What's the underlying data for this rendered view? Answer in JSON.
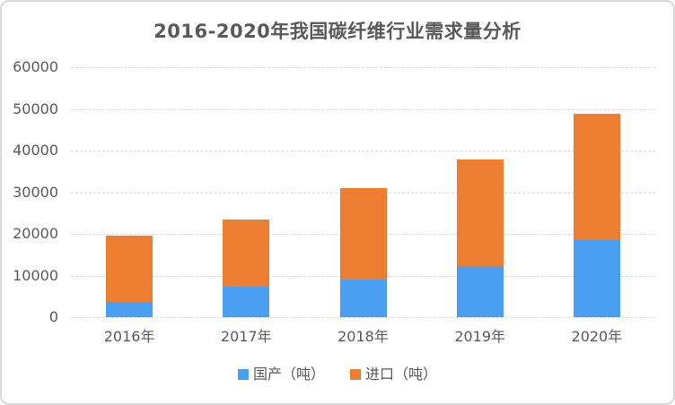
{
  "page": {
    "background_color": "#ffffff",
    "border_color": "#d9d9d9",
    "text_color": "#595959"
  },
  "chart_data": {
    "type": "bar",
    "stacked": true,
    "title": "2016-2020年我国碳纤维行业需求量分析",
    "categories": [
      "2016年",
      "2017年",
      "2018年",
      "2019年",
      "2020年"
    ],
    "series": [
      {
        "name": "国产（吨）",
        "color": "#4B9FF2",
        "values": [
          3600,
          7400,
          9000,
          12000,
          18450
        ]
      },
      {
        "name": "进口（吨）",
        "color": "#ED7D31",
        "values": [
          15963,
          16087,
          22000,
          25840,
          30401
        ]
      }
    ],
    "ylim": [
      0,
      60000
    ],
    "ytick_interval": 10000,
    "yticks": [
      "0",
      "10000",
      "20000",
      "30000",
      "40000",
      "50000",
      "60000"
    ],
    "grid": "horizontal-dashed",
    "gridline_color": "#d9d9d9",
    "legend_position": "bottom"
  }
}
